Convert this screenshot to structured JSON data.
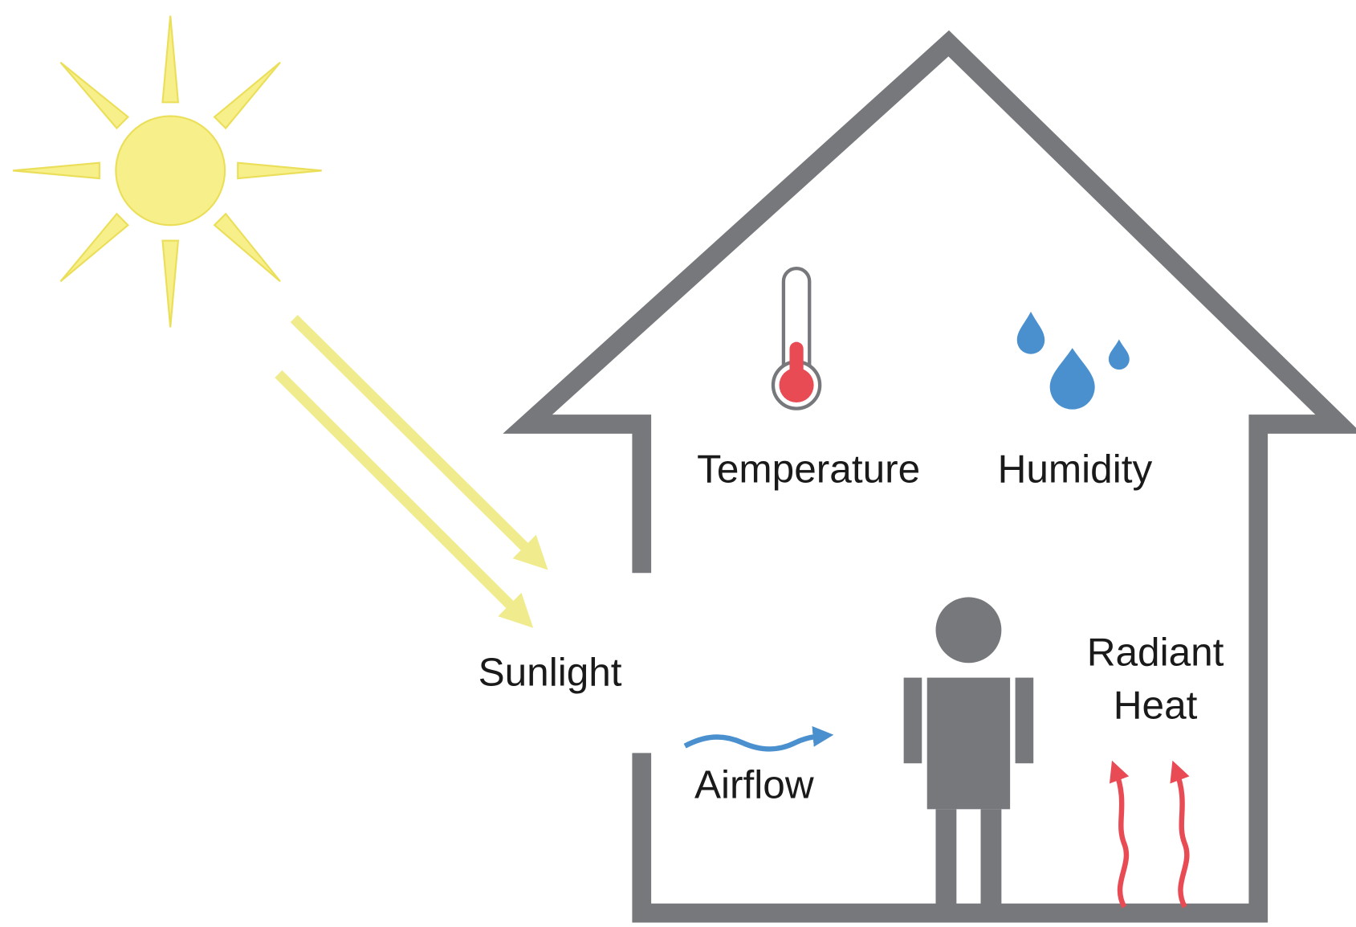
{
  "labels": {
    "temperature": "Temperature",
    "humidity": "Humidity",
    "sunlight": "Sunlight",
    "airflow": "Airflow",
    "radiant_heat": [
      "Radiant",
      "Heat"
    ]
  }
}
